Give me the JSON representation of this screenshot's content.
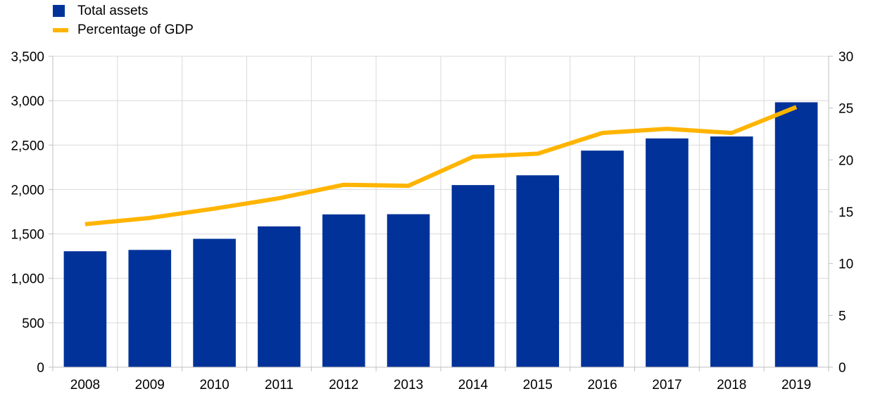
{
  "colors": {
    "bars": "#003299",
    "line": "#FFB400",
    "grid": "#d9d9d9",
    "axis": "#bfbfbf"
  },
  "legend": {
    "bars_label": "Total assets",
    "line_label": "Percentage of GDP"
  },
  "chart_data": {
    "type": "bar",
    "categories": [
      "2008",
      "2009",
      "2010",
      "2011",
      "2012",
      "2013",
      "2014",
      "2015",
      "2016",
      "2017",
      "2018",
      "2019"
    ],
    "series": [
      {
        "name": "Total assets",
        "type": "bar",
        "axis": "left",
        "values": [
          1305,
          1320,
          1445,
          1585,
          1720,
          1722,
          2050,
          2160,
          2438,
          2575,
          2597,
          2982
        ]
      },
      {
        "name": "Percentage of GDP",
        "type": "line",
        "axis": "right",
        "values": [
          13.8,
          14.4,
          15.3,
          16.3,
          17.6,
          17.5,
          20.3,
          20.6,
          22.6,
          23.0,
          22.6,
          25.1
        ]
      }
    ],
    "y_left": {
      "min": 0,
      "max": 3500,
      "ticks": [
        0,
        500,
        1000,
        1500,
        2000,
        2500,
        3000,
        3500
      ],
      "tick_labels": [
        "0",
        "500",
        "1,000",
        "1,500",
        "2,000",
        "2,500",
        "3,000",
        "3,500"
      ]
    },
    "y_right": {
      "min": 0,
      "max": 30,
      "ticks": [
        0,
        5,
        10,
        15,
        20,
        25,
        30
      ],
      "tick_labels": [
        "0",
        "5",
        "10",
        "15",
        "20",
        "25",
        "30"
      ]
    },
    "grid": true,
    "legend_position": "top-left"
  }
}
